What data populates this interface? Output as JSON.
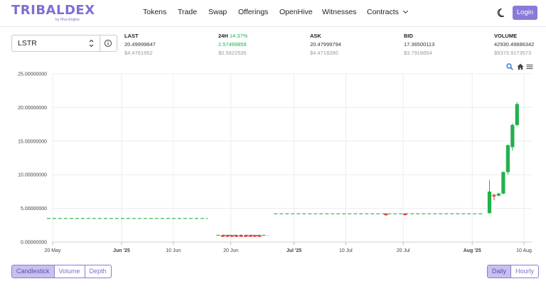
{
  "brand": {
    "name": "TRIBALDEX",
    "sub": "by Hive-Engine",
    "color": "#7c6fd4"
  },
  "nav": {
    "tokens": "Tokens",
    "trade": "Trade",
    "swap": "Swap",
    "offerings": "Offerings",
    "openhive": "OpenHive",
    "witnesses": "Witnesses",
    "contracts": "Contracts"
  },
  "header": {
    "login_label": "Login",
    "theme_icon": "moon-icon"
  },
  "market": {
    "selected_token": "LSTR",
    "last": {
      "label": "LAST",
      "value": "20.49999847",
      "usd": "$4.4761952"
    },
    "change": {
      "label": "24H",
      "pct": "14.37%",
      "value": "2.57499858",
      "usd": "$0.5622535"
    },
    "ask": {
      "label": "ASK",
      "value": "20.47999794",
      "usd": "$4.4718280"
    },
    "bid": {
      "label": "BID",
      "value": "17.36500113",
      "usd": "$3.7916654"
    },
    "volume": {
      "label": "VOLUME",
      "value": "42930.49886342",
      "usd": "$9373.9173573"
    }
  },
  "chart_data": {
    "type": "candlestick",
    "y_ticks": [
      "25.00000000",
      "20.00000000",
      "15.00000000",
      "10.00000000",
      "5.00000000",
      "0.00000000"
    ],
    "ylim": [
      0,
      25
    ],
    "x_ticks": [
      {
        "label": "20 May",
        "day": 0,
        "bold": false
      },
      {
        "label": "Jun '25",
        "day": 12,
        "bold": true
      },
      {
        "label": "10 Jun",
        "day": 21,
        "bold": false
      },
      {
        "label": "20 Jun",
        "day": 31,
        "bold": false
      },
      {
        "label": "Jul '25",
        "day": 42,
        "bold": true
      },
      {
        "label": "10 Jul",
        "day": 51,
        "bold": false
      },
      {
        "label": "20 Jul",
        "day": 61,
        "bold": false
      },
      {
        "label": "Aug '25",
        "day": 73,
        "bold": true
      },
      {
        "label": "10 Aug",
        "day": 82,
        "bold": false
      }
    ],
    "flat_segments": [
      {
        "from": -1,
        "to": 27,
        "y": 3.5,
        "color": "#22b14c"
      },
      {
        "from": 28.5,
        "to": 37.5,
        "y": 1.0,
        "color": "#22b14c"
      },
      {
        "from": 38.5,
        "to": 75,
        "y": 4.2,
        "color": "#22b14c"
      }
    ],
    "candles": [
      {
        "day": 29.6,
        "o": 1.0,
        "h": 1.1,
        "l": 0.75,
        "c": 0.8
      },
      {
        "day": 30.4,
        "o": 1.0,
        "h": 1.1,
        "l": 0.75,
        "c": 0.8
      },
      {
        "day": 31.2,
        "o": 1.0,
        "h": 1.1,
        "l": 0.75,
        "c": 0.8
      },
      {
        "day": 32.0,
        "o": 1.0,
        "h": 1.1,
        "l": 0.75,
        "c": 0.8
      },
      {
        "day": 32.8,
        "o": 1.0,
        "h": 1.1,
        "l": 0.75,
        "c": 0.8
      },
      {
        "day": 33.6,
        "o": 1.0,
        "h": 1.1,
        "l": 0.75,
        "c": 0.8
      },
      {
        "day": 34.4,
        "o": 1.0,
        "h": 1.1,
        "l": 0.75,
        "c": 0.8
      },
      {
        "day": 35.2,
        "o": 1.0,
        "h": 1.1,
        "l": 0.75,
        "c": 0.8
      },
      {
        "day": 36.0,
        "o": 1.0,
        "h": 1.1,
        "l": 0.75,
        "c": 0.8
      },
      {
        "day": 58.0,
        "o": 4.2,
        "h": 4.3,
        "l": 3.9,
        "c": 4.0
      },
      {
        "day": 61.3,
        "o": 4.2,
        "h": 4.3,
        "l": 4.0,
        "c": 4.15
      },
      {
        "day": 76.0,
        "o": 4.3,
        "h": 9.2,
        "l": 4.2,
        "c": 7.5
      },
      {
        "day": 76.8,
        "o": 7.0,
        "h": 7.2,
        "l": 6.2,
        "c": 6.8
      },
      {
        "day": 77.6,
        "o": 6.9,
        "h": 7.3,
        "l": 6.8,
        "c": 7.2
      },
      {
        "day": 78.4,
        "o": 7.2,
        "h": 10.5,
        "l": 7.1,
        "c": 10.4
      },
      {
        "day": 79.2,
        "o": 10.4,
        "h": 14.5,
        "l": 10.0,
        "c": 14.4
      },
      {
        "day": 80.0,
        "o": 14.1,
        "h": 17.6,
        "l": 13.6,
        "c": 17.4
      },
      {
        "day": 80.8,
        "o": 17.4,
        "h": 20.8,
        "l": 17.2,
        "c": 20.5
      }
    ],
    "colors": {
      "up": "#22b14c",
      "down": "#e53935",
      "grid": "#ececf0",
      "axis": "#444"
    }
  },
  "toolbar": {
    "zoom_icon": "zoom-icon",
    "home_icon": "home-icon",
    "menu_icon": "menu-icon"
  },
  "tabs_left": [
    "Candlestick",
    "Volume",
    "Depth"
  ],
  "tabs_right": [
    "Daily",
    "Hourly"
  ]
}
